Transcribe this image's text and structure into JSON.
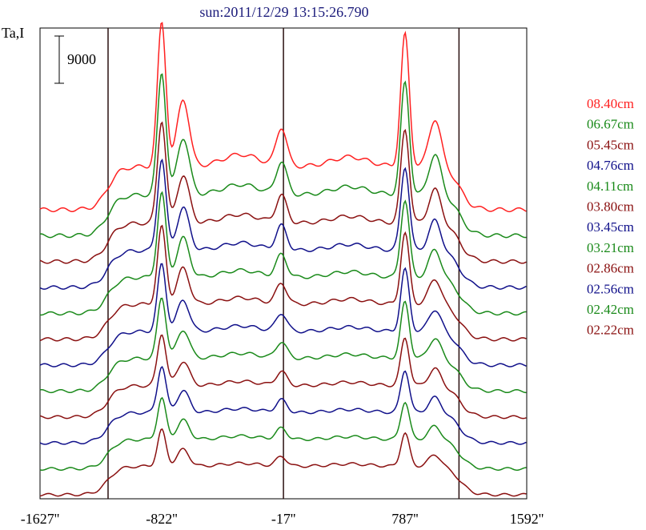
{
  "chart_data": {
    "type": "line",
    "title": "sun:2011/12/29 13:15:26.790",
    "ylabel": "Ta,I",
    "scale_bar_label": "9000",
    "scale_bar_value": 9000,
    "x_tick_labels": [
      "-1627''",
      "-822''",
      "-17''",
      "787''",
      "1592''"
    ],
    "x_ticks": [
      -1627,
      -822,
      -17,
      787,
      1592
    ],
    "xlim": [
      -1627,
      1592
    ],
    "vertical_markers": [
      -1177,
      -17,
      1144
    ],
    "grid": false,
    "legend_position": "right",
    "series": [
      {
        "name": "08.40cm",
        "color": "#ff2020",
        "baseline": 0.0,
        "amplitude": 1.0
      },
      {
        "name": "06.67cm",
        "color": "#1a8a1a",
        "baseline": 0.0,
        "amplitude": 0.9
      },
      {
        "name": "05.45cm",
        "color": "#8a1010",
        "baseline": 0.0,
        "amplitude": 0.8
      },
      {
        "name": "04.76cm",
        "color": "#10108a",
        "baseline": 0.0,
        "amplitude": 0.74
      },
      {
        "name": "04.11cm",
        "color": "#1a8a1a",
        "baseline": 0.0,
        "amplitude": 0.7
      },
      {
        "name": "03.80cm",
        "color": "#8a1010",
        "baseline": 0.0,
        "amplitude": 0.66
      },
      {
        "name": "03.45cm",
        "color": "#10108a",
        "baseline": 0.0,
        "amplitude": 0.6
      },
      {
        "name": "03.21cm",
        "color": "#1a8a1a",
        "baseline": 0.0,
        "amplitude": 0.56
      },
      {
        "name": "02.86cm",
        "color": "#8a1010",
        "baseline": 0.0,
        "amplitude": 0.5
      },
      {
        "name": "02.56cm",
        "color": "#10108a",
        "baseline": 0.0,
        "amplitude": 0.46
      },
      {
        "name": "02.42cm",
        "color": "#1a8a1a",
        "baseline": 0.0,
        "amplitude": 0.42
      },
      {
        "name": "02.22cm",
        "color": "#8a1010",
        "baseline": 0.0,
        "amplitude": 0.38
      }
    ]
  }
}
